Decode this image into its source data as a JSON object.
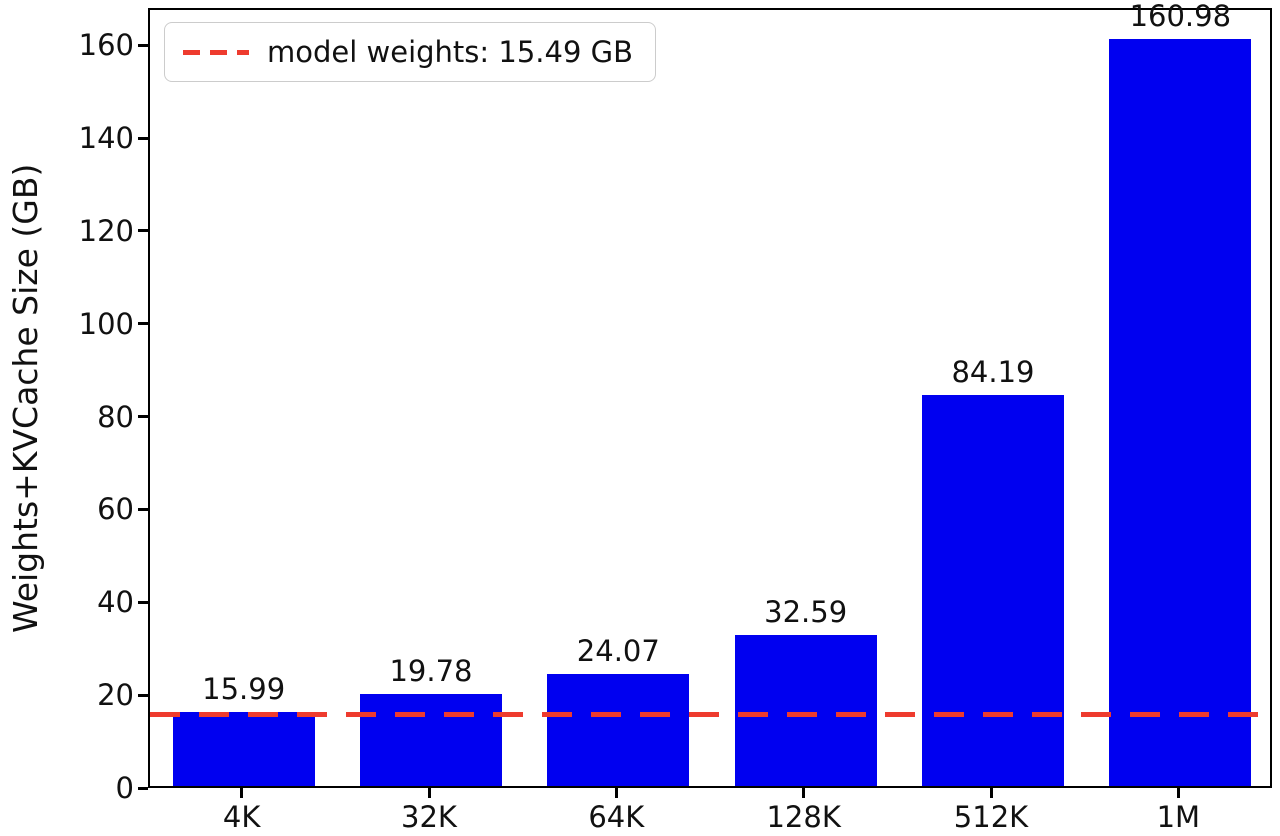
{
  "chart_data": {
    "type": "bar",
    "title": "",
    "xlabel": "",
    "ylabel": "Weights+KVCache Size (GB)",
    "categories": [
      "4K",
      "32K",
      "64K",
      "128K",
      "512K",
      "1M"
    ],
    "values": [
      15.99,
      19.78,
      24.07,
      32.59,
      84.19,
      160.98
    ],
    "bar_labels": [
      "15.99",
      "19.78",
      "24.07",
      "32.59",
      "84.19",
      "160.98"
    ],
    "ylim": [
      0,
      168
    ],
    "yticks": [
      0,
      20,
      40,
      60,
      80,
      100,
      120,
      140,
      160
    ],
    "grid": false,
    "bar_color": "#0000f0",
    "axis_color": "#000000",
    "text_color": "#111111",
    "threshold": {
      "value": 15.49,
      "label": "model weights: 15.49 GB",
      "color": "#ee3b2e",
      "style": "dashed"
    },
    "legend_position": "upper left"
  }
}
